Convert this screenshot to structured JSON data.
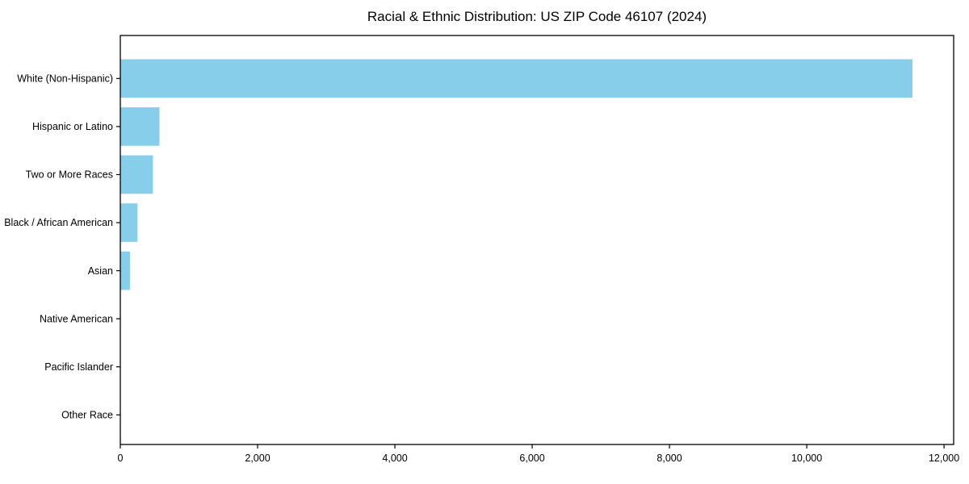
{
  "chart_data": {
    "type": "bar",
    "orientation": "horizontal",
    "title": "Racial & Ethnic Distribution: US ZIP Code 46107 (2024)",
    "categories": [
      "White (Non-Hispanic)",
      "Hispanic or Latino",
      "Two or More Races",
      "Black / African American",
      "Asian",
      "Native American",
      "Pacific Islander",
      "Other Race"
    ],
    "values": [
      11540,
      570,
      475,
      250,
      140,
      0,
      0,
      0
    ],
    "xlabel": "",
    "ylabel": "",
    "xlim": [
      0,
      12140
    ],
    "xticks": {
      "values": [
        0,
        2000,
        4000,
        6000,
        8000,
        10000,
        12000
      ],
      "labels": [
        "0",
        "2,000",
        "4,000",
        "6,000",
        "8,000",
        "10,000",
        "12,000"
      ]
    },
    "grid": false,
    "legend": null,
    "bar_color": "#87CEEB",
    "frame_color": "#000000",
    "text_color": "#000000"
  }
}
